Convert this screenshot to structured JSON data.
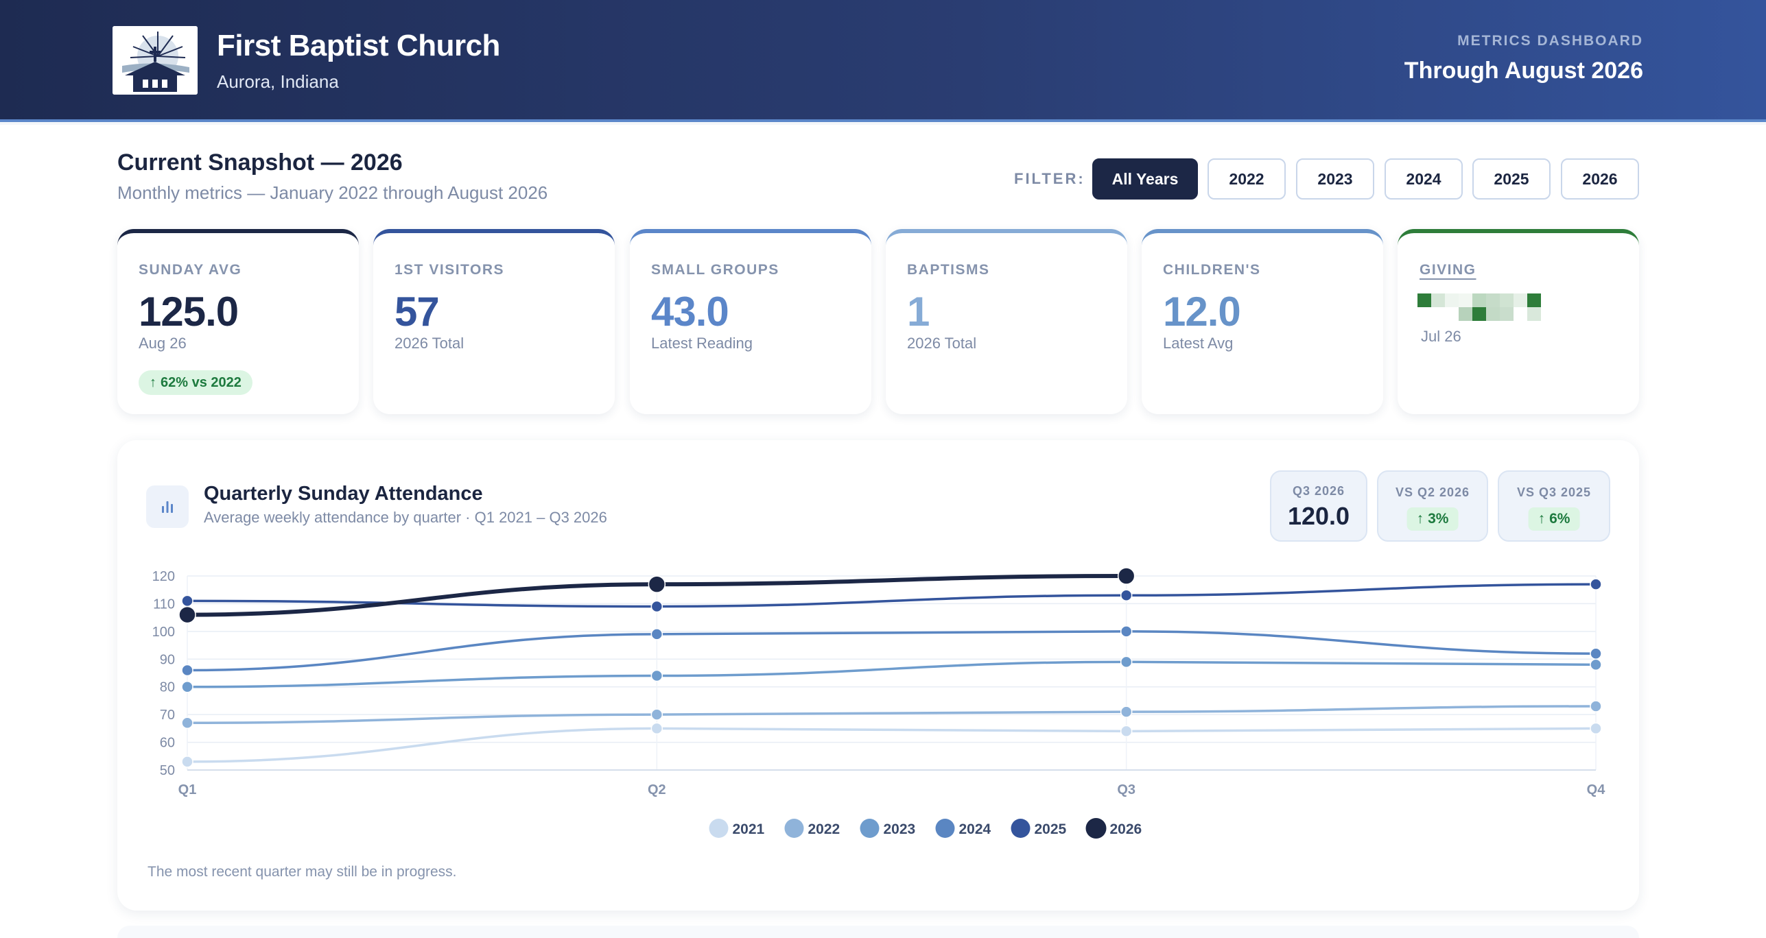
{
  "header": {
    "church_name": "First Baptist Church",
    "location": "Aurora, Indiana",
    "dashboard_label": "METRICS DASHBOARD",
    "period": "Through August 2026"
  },
  "snapshot": {
    "title": "Current Snapshot — 2026",
    "subtitle": "Monthly metrics — January 2022 through August 2026"
  },
  "filter": {
    "label": "FILTER:",
    "options": [
      "All Years",
      "2022",
      "2023",
      "2024",
      "2025",
      "2026"
    ],
    "selected": "All Years"
  },
  "kpis": [
    {
      "label": "SUNDAY AVG",
      "value": "125.0",
      "sub": "Aug 26",
      "badge": "62% vs 2022",
      "accent": "#1c2746",
      "value_color": "#1c2746"
    },
    {
      "label": "1ST VISITORS",
      "value": "57",
      "sub": "2026 Total",
      "accent": "#34549c",
      "value_color": "#34549c"
    },
    {
      "label": "SMALL GROUPS",
      "value": "43.0",
      "sub": "Latest Reading",
      "accent": "#5b86c9",
      "value_color": "#5b86c9"
    },
    {
      "label": "BAPTISMS",
      "value": "1",
      "sub": "2026 Total",
      "accent": "#86abd6",
      "value_color": "#86abd6"
    },
    {
      "label": "CHILDREN'S",
      "value": "12.0",
      "sub": "Latest Avg",
      "accent": "#6793c9",
      "value_color": "#6793c9"
    },
    {
      "label": "GIVING",
      "value": "",
      "sub": "Jul 26",
      "accent": "#2e7d3a",
      "value_color": "#2e7d3a"
    }
  ],
  "chart_card": {
    "title": "Quarterly Sunday Attendance",
    "subtitle": "Average weekly attendance by quarter · Q1 2021 – Q3 2026",
    "note": "The most recent quarter may still be in progress.",
    "stats": [
      {
        "label": "Q3 2026",
        "value": "120.0"
      },
      {
        "label": "VS Q2 2026",
        "badge": "3%"
      },
      {
        "label": "VS Q3 2025",
        "badge": "6%"
      }
    ]
  },
  "chart_data": {
    "type": "line",
    "categories": [
      "Q1",
      "Q2",
      "Q3",
      "Q4"
    ],
    "ylim": [
      50,
      120
    ],
    "yticks": [
      50,
      60,
      70,
      80,
      90,
      100,
      110,
      120
    ],
    "grid": true,
    "legend_position": "bottom-center",
    "series": [
      {
        "name": "2021",
        "values": [
          53,
          65,
          64,
          65
        ],
        "color": "#c9dbef"
      },
      {
        "name": "2022",
        "values": [
          67,
          70,
          71,
          73
        ],
        "color": "#8fb3da"
      },
      {
        "name": "2023",
        "values": [
          80,
          84,
          89,
          88
        ],
        "color": "#6e9ccd"
      },
      {
        "name": "2024",
        "values": [
          86,
          99,
          100,
          92
        ],
        "color": "#5a86c2"
      },
      {
        "name": "2025",
        "values": [
          111,
          109,
          113,
          117
        ],
        "color": "#34549c"
      },
      {
        "name": "2026",
        "values": [
          106,
          117,
          120,
          null
        ],
        "color": "#1c2746"
      }
    ]
  }
}
